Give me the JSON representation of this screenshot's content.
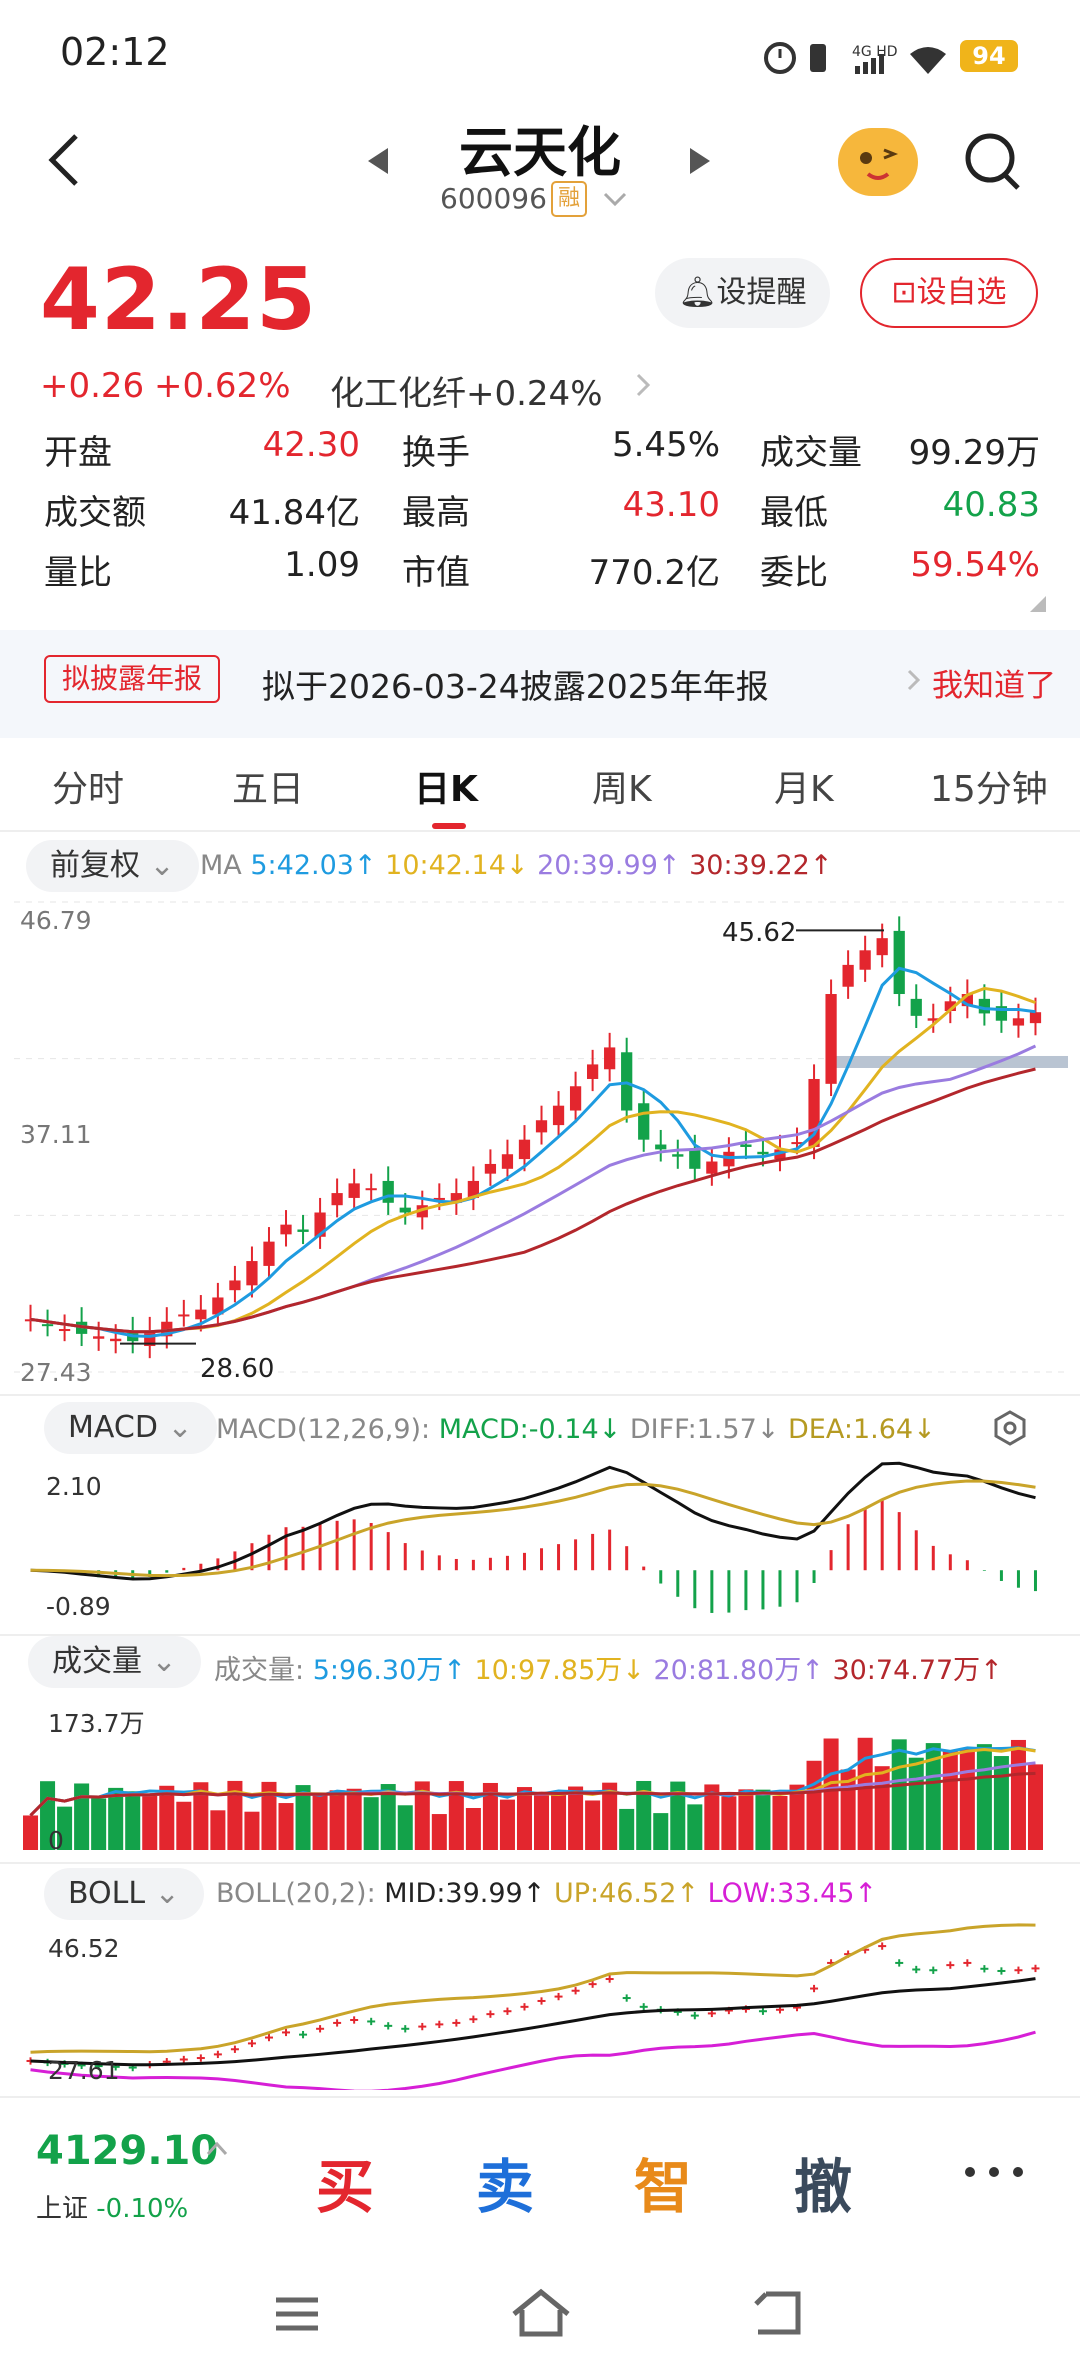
{
  "status": {
    "time": "02:12",
    "network": "4G HD",
    "battery": "94"
  },
  "header": {
    "title": "云天化",
    "code": "600096",
    "margin_badge": "融"
  },
  "price": {
    "last": "42.25",
    "change": "+0.26",
    "change_pct": "+0.62%",
    "sector": "化工化纤",
    "sector_pct": "+0.24%",
    "remind_label": "设提醒",
    "fav_label": "设自选"
  },
  "quote": [
    [
      {
        "l": "开盘",
        "v": "42.30",
        "c": "red"
      },
      {
        "l": "换手",
        "v": "5.45%",
        "c": "black"
      },
      {
        "l": "成交量",
        "v": "99.29万",
        "c": "black"
      }
    ],
    [
      {
        "l": "成交额",
        "v": "41.84亿",
        "c": "black"
      },
      {
        "l": "最高",
        "v": "43.10",
        "c": "red"
      },
      {
        "l": "最低",
        "v": "40.83",
        "c": "green"
      }
    ],
    [
      {
        "l": "量比",
        "v": "1.09",
        "c": "black"
      },
      {
        "l": "市值",
        "v": "770.2亿",
        "c": "black"
      },
      {
        "l": "委比",
        "v": "59.54%",
        "c": "red"
      }
    ]
  ],
  "banner": {
    "tag": "拟披露年报",
    "text": "拟于2026-03-24披露2025年年报",
    "action": "我知道了"
  },
  "tabs": [
    "分时",
    "五日",
    "日K",
    "周K",
    "月K",
    "15分钟"
  ],
  "kline": {
    "adjust": "前复权",
    "ma": [
      {
        "label": "MA",
        "value": "",
        "color": "#888888"
      },
      {
        "label": "5:",
        "value": "42.03↑",
        "color": "#1e9be0"
      },
      {
        "label": "10:",
        "value": "42.14↓",
        "color": "#e1b320"
      },
      {
        "label": "20:",
        "value": "39.99↑",
        "color": "#9a7ce0"
      },
      {
        "label": "30:",
        "value": "39.22↑",
        "color": "#b3272c"
      }
    ],
    "y_top": "46.79",
    "y_mid": "37.11",
    "y_bot": "27.43",
    "high_mark": "45.62",
    "low_mark": "28.60"
  },
  "macd": {
    "name": "MACD",
    "params": "MACD(12,26,9):",
    "macd": "MACD:-0.14↓",
    "diff": "DIFF:1.57↓",
    "dea": "DEA:1.64↓",
    "y_top": "2.10",
    "y_bot": "-0.89"
  },
  "volume": {
    "name": "成交量",
    "label": "成交量:",
    "ma": [
      {
        "t": "5:96.30万↑",
        "color": "#1e9be0"
      },
      {
        "t": "10:97.85万↓",
        "color": "#e1b320"
      },
      {
        "t": "20:81.80万↑",
        "color": "#9a7ce0"
      },
      {
        "t": "30:74.77万↑",
        "color": "#b3272c"
      }
    ],
    "y_top": "173.7万",
    "y_zero": "0"
  },
  "boll": {
    "name": "BOLL",
    "params": "BOLL(20,2):",
    "mid": "MID:39.99↑",
    "up": "UP:46.52↑",
    "low": "LOW:33.45↑",
    "y_top": "46.52",
    "y_bot": "27.61"
  },
  "index": {
    "value": "4129.10",
    "name": "上证",
    "pct": "-0.10%"
  },
  "actions": [
    {
      "label": "买",
      "color": "#e3262e"
    },
    {
      "label": "卖",
      "color": "#1e6fd9"
    },
    {
      "label": "智",
      "color": "#e88a1a"
    },
    {
      "label": "撤",
      "color": "#3a4a5c"
    }
  ],
  "colors": {
    "up": "#e3262e",
    "down": "#13a24a",
    "accent": "#e3262e"
  },
  "chart_data": {
    "type": "candlestick",
    "closes": [
      29.6,
      29.4,
      29.2,
      29.0,
      28.9,
      28.8,
      28.7,
      29.1,
      29.5,
      29.8,
      30.0,
      30.5,
      31.2,
      32.0,
      32.8,
      33.5,
      33.2,
      34.0,
      34.8,
      35.2,
      35.0,
      34.4,
      34.0,
      34.3,
      34.6,
      34.8,
      35.3,
      36.0,
      36.4,
      37.0,
      37.8,
      38.4,
      39.2,
      40.1,
      40.8,
      38.2,
      37.0,
      36.6,
      36.3,
      35.8,
      36.1,
      36.5,
      36.7,
      36.4,
      36.6,
      36.9,
      39.5,
      43.0,
      44.2,
      44.8,
      45.3,
      43.0,
      42.1,
      42.0,
      42.7,
      43.0,
      42.2,
      41.9,
      42.0,
      42.25
    ]
  }
}
